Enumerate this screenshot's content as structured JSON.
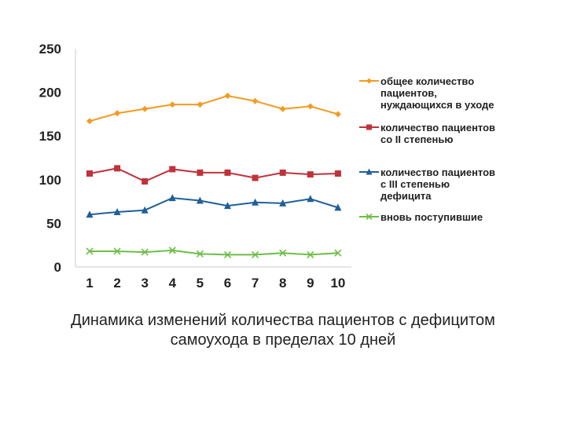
{
  "chart_data": {
    "type": "line",
    "x": [
      1,
      2,
      3,
      4,
      5,
      6,
      7,
      8,
      9,
      10
    ],
    "x_tick_labels": [
      "1",
      "2",
      "3",
      "4",
      "5",
      "6",
      "7",
      "8",
      "9",
      "10"
    ],
    "y_ticks": [
      0,
      50,
      100,
      150,
      200,
      250
    ],
    "y_tick_labels": [
      "0",
      "50",
      "100",
      "150",
      "200",
      "250"
    ],
    "ylim": [
      0,
      250
    ],
    "grid": false,
    "legend_position": "right",
    "series": [
      {
        "name_lines": [
          "общее количество",
          "пациентов,",
          "нуждающихся в уходе"
        ],
        "color": "#F59A1F",
        "marker": "diamond",
        "values": [
          167,
          176,
          181,
          186,
          186,
          196,
          190,
          181,
          184,
          175
        ]
      },
      {
        "name_lines": [
          "количество пациентов",
          "со II степенью"
        ],
        "color": "#C0323B",
        "marker": "square",
        "values": [
          107,
          113,
          98,
          112,
          108,
          108,
          102,
          108,
          106,
          107
        ]
      },
      {
        "name_lines": [
          "количество пациентов",
          "с III степенью",
          "дефицита"
        ],
        "color": "#1F5F9A",
        "marker": "triangle",
        "values": [
          60,
          63,
          65,
          79,
          76,
          70,
          74,
          73,
          78,
          68
        ]
      },
      {
        "name_lines": [
          "вновь поступившие"
        ],
        "color": "#6DBE45",
        "marker": "x",
        "values": [
          18,
          18,
          17,
          19,
          15,
          14,
          14,
          16,
          14,
          16
        ]
      }
    ]
  },
  "caption": {
    "line1": "Динамика изменений количества пациентов с дефицитом",
    "line2": "самоухода  в пределах 10 дней"
  }
}
